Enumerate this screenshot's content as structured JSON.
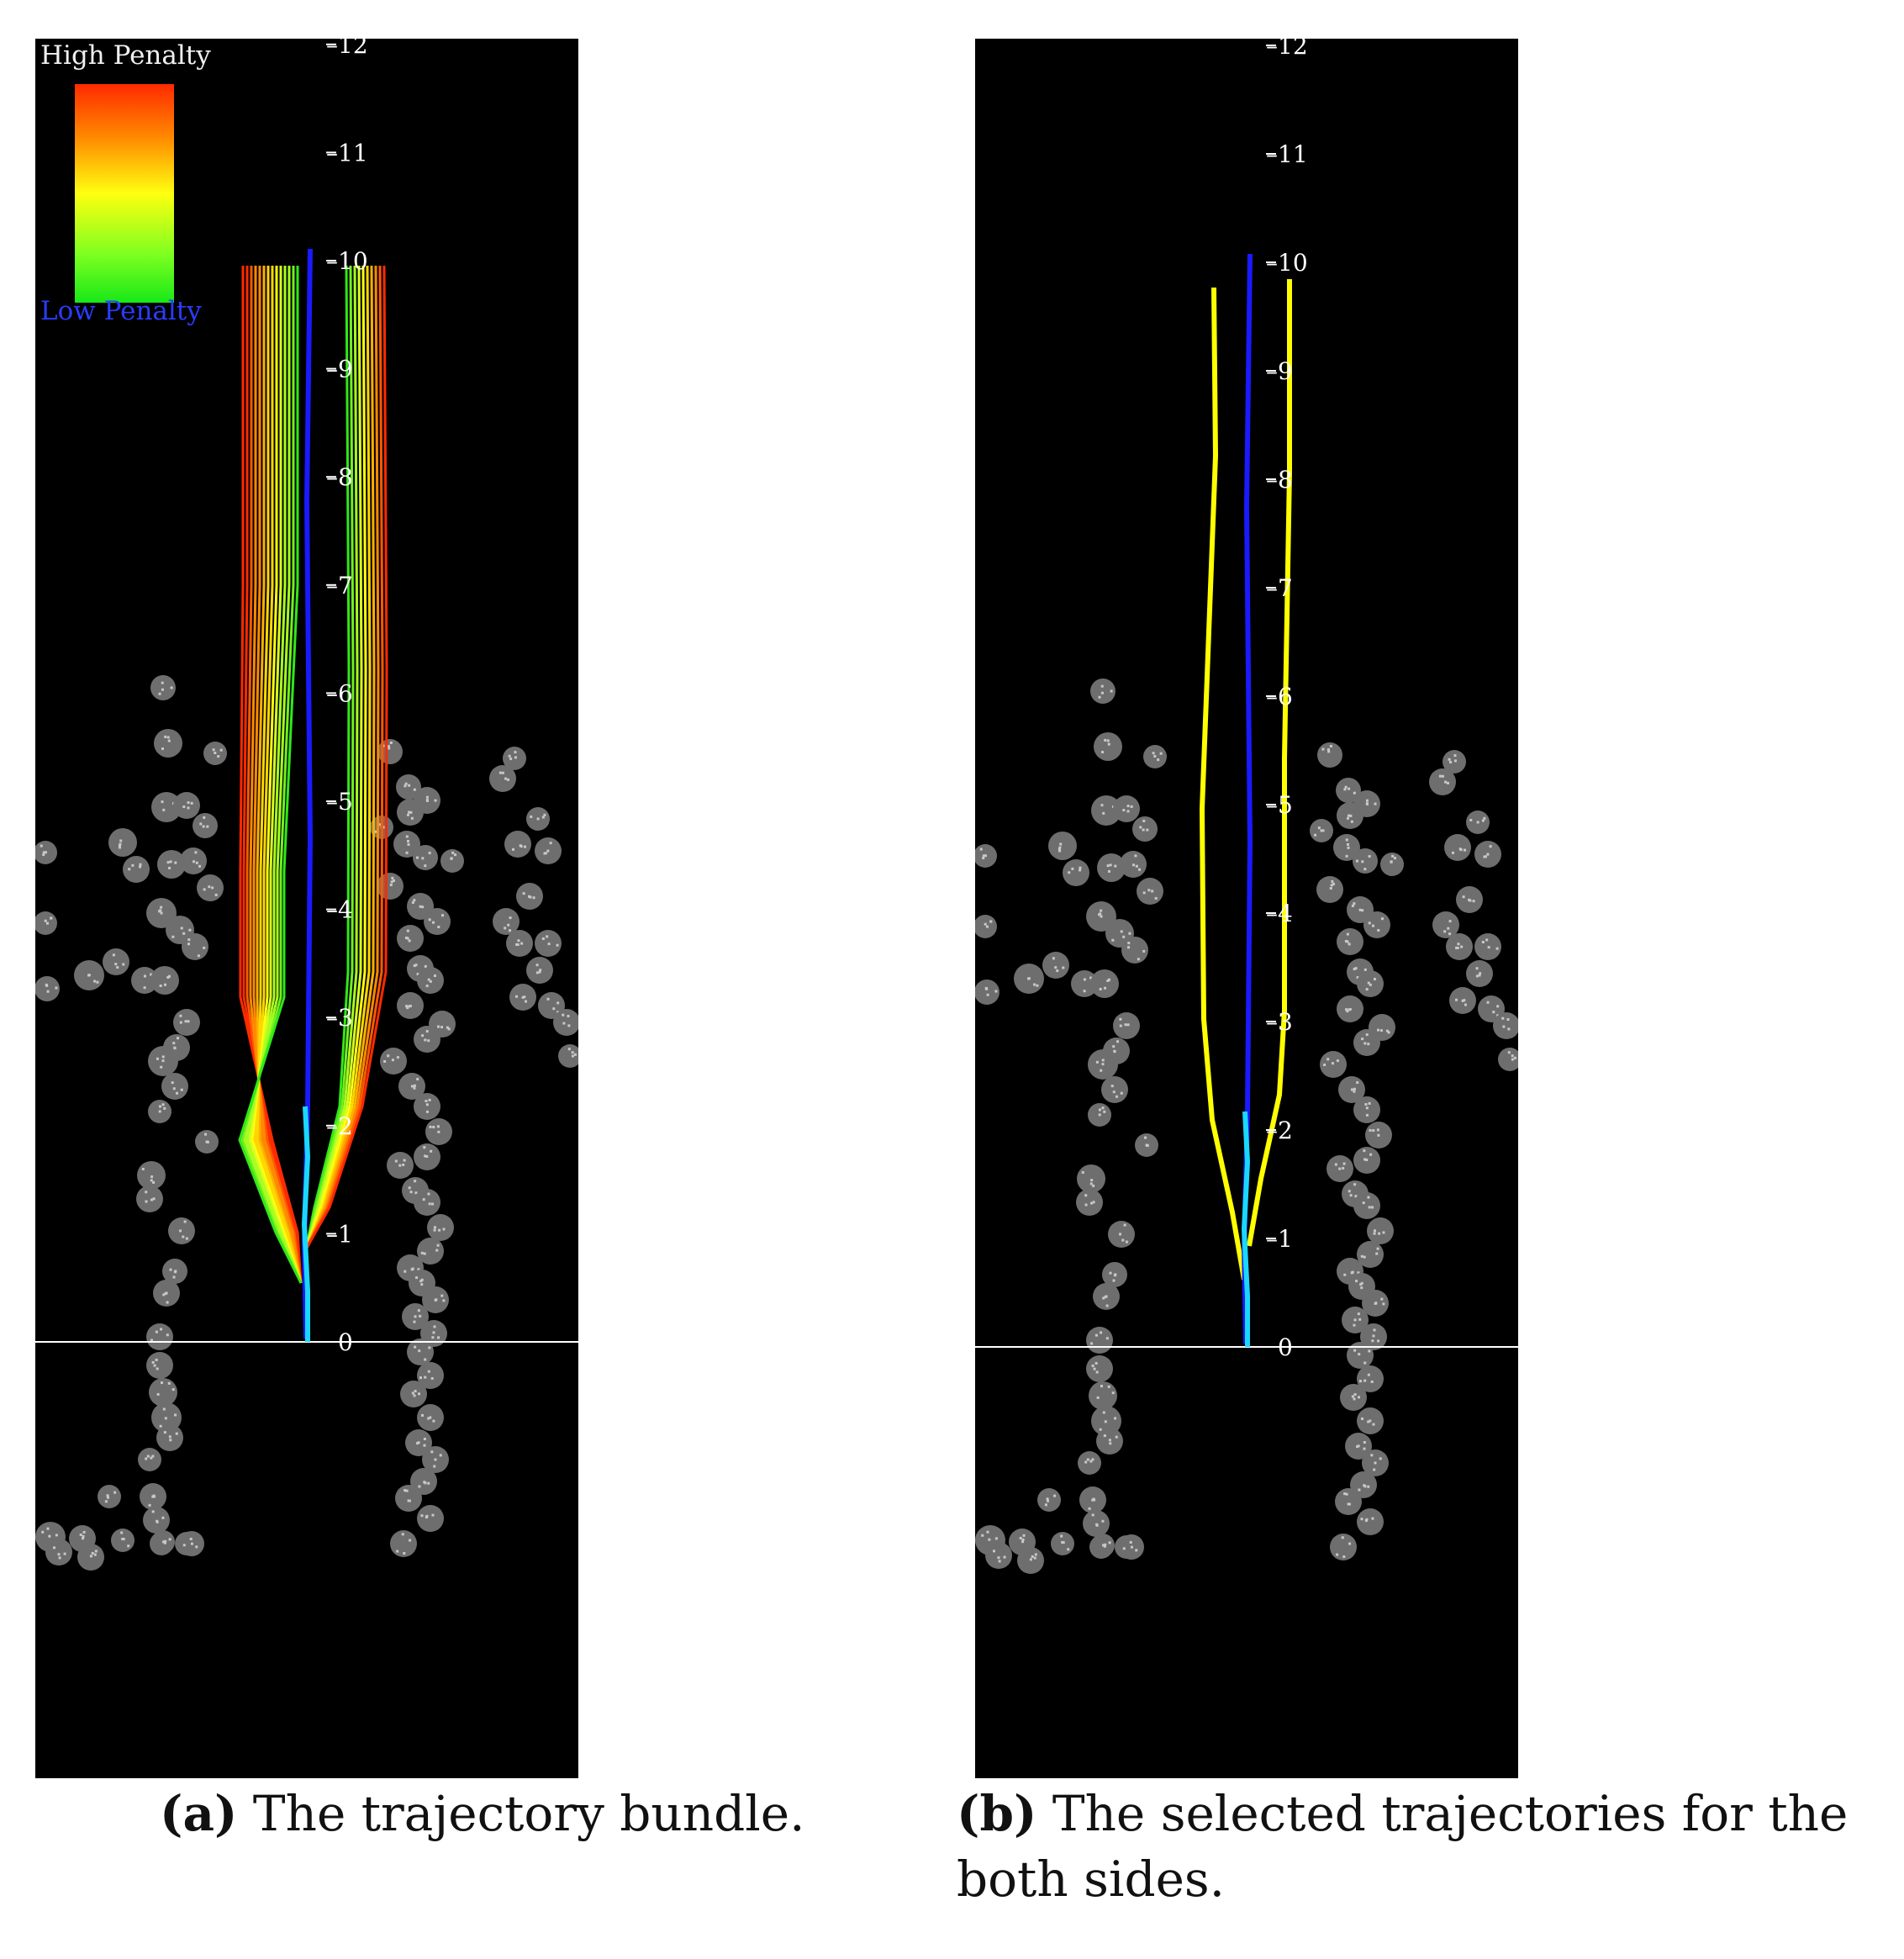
{
  "legend": {
    "high_label": "High Penalty",
    "low_label": "Low Penalty",
    "high_color": "#ff1a00",
    "mid_color": "#ffff00",
    "low_color": "#19e619"
  },
  "axis_ticks": [
    "0",
    "1",
    "2",
    "3",
    "4",
    "5",
    "6",
    "7",
    "8",
    "9",
    "10",
    "11",
    "12"
  ],
  "colors": {
    "background": "#000000",
    "obstacle_fill": "#6e6e6e",
    "obstacle_speckle": "#c8c8c8",
    "center_path": "#1a1aff",
    "current_path": "#19d8ff",
    "baseline": "#ffffff",
    "selected_path": "#ffff00"
  },
  "panel_a": {
    "tag": "(a)",
    "caption": "The trajectory bundle."
  },
  "panel_b": {
    "tag": "(b)",
    "caption": "The selected trajectories for the both sides."
  }
}
